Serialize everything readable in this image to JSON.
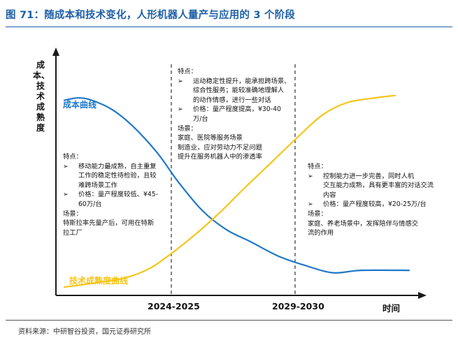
{
  "figure_title": "图 71：随成本和技术变化，人形机器人量产与应用的 3 个阶段",
  "source": "资料来源：中研智谷投资，国元证券研究所",
  "colors": {
    "cost": "#1f78c8",
    "tech": "#f5c518",
    "title": "#1f5fa8"
  },
  "annotations": {
    "stage1": {
      "lines": [
        {
          "type": "head",
          "text": "特点："
        },
        {
          "type": "bullet",
          "text": "移动能力最成熟，自主重复"
        },
        {
          "type": "cont",
          "text": "工作的稳定性待检验，且较"
        },
        {
          "type": "cont",
          "text": "难跨场景工作"
        },
        {
          "type": "bullet",
          "text": "价格：量产程度较低、¥45-"
        },
        {
          "type": "cont",
          "text": "60万/台"
        },
        {
          "type": "head",
          "text": "场景："
        },
        {
          "type": "head",
          "text": "特斯拉率先量产后，可用在特斯"
        },
        {
          "type": "head",
          "text": "拉工厂"
        }
      ]
    },
    "stage2": {
      "lines": [
        {
          "type": "head",
          "text": "特点："
        },
        {
          "type": "bullet",
          "text": "运动稳定性提升，能承担跨场景、"
        },
        {
          "type": "cont",
          "text": "综合性服务；能较准确地理解人"
        },
        {
          "type": "cont",
          "text": "的动作情感，进行一些对话"
        },
        {
          "type": "bullet",
          "text": "价格：量产程度提高，¥30-40"
        },
        {
          "type": "cont",
          "text": "万/台"
        },
        {
          "type": "head",
          "text": "场景："
        },
        {
          "type": "head",
          "text": "家庭、医院等服务场景"
        },
        {
          "type": "head",
          "text": "制造业，应对劳动力不足问题"
        },
        {
          "type": "head",
          "text": "提升在服务机器人中的渗透率"
        }
      ]
    },
    "stage3": {
      "lines": [
        {
          "type": "head",
          "text": "特点："
        },
        {
          "type": "bullet",
          "text": "控制能力进一步完善，同时人机"
        },
        {
          "type": "cont",
          "text": "交互能力成熟，具有更丰富的对话交流"
        },
        {
          "type": "cont",
          "text": "内容"
        },
        {
          "type": "bullet",
          "text": "价格：量产程度较高，¥20-25万/台"
        },
        {
          "type": "head",
          "text": "场景："
        },
        {
          "type": "head",
          "text": "家庭、养老场景中，发挥陪伴与情感交"
        },
        {
          "type": "head",
          "text": "流的作用"
        }
      ]
    }
  },
  "chart_data": {
    "type": "line",
    "ylabel": "成本、技术成熟度",
    "xlabel": "时间",
    "x_ticks": [
      "2024-2025",
      "2029-2030"
    ],
    "grid": false,
    "series": [
      {
        "name": "成本曲线",
        "color": "#1f78c8",
        "points": [
          [
            0,
            0.8
          ],
          [
            0.04,
            0.81
          ],
          [
            0.08,
            0.8
          ],
          [
            0.14,
            0.76
          ],
          [
            0.2,
            0.69
          ],
          [
            0.27,
            0.58
          ],
          [
            0.33,
            0.46
          ],
          [
            0.4,
            0.34
          ],
          [
            0.47,
            0.26
          ],
          [
            0.54,
            0.21
          ],
          [
            0.62,
            0.15
          ],
          [
            0.7,
            0.11
          ],
          [
            0.78,
            0.08
          ],
          [
            0.86,
            0.09
          ],
          [
            1.0,
            0.09
          ]
        ]
      },
      {
        "name": "技术成熟度曲线",
        "color": "#f5c518",
        "points": [
          [
            0,
            0.02
          ],
          [
            0.1,
            0.04
          ],
          [
            0.18,
            0.06
          ],
          [
            0.25,
            0.1
          ],
          [
            0.31,
            0.16
          ],
          [
            0.38,
            0.24
          ],
          [
            0.45,
            0.33
          ],
          [
            0.52,
            0.43
          ],
          [
            0.6,
            0.54
          ],
          [
            0.68,
            0.65
          ],
          [
            0.75,
            0.74
          ],
          [
            0.82,
            0.79
          ],
          [
            0.9,
            0.81
          ],
          [
            0.96,
            0.82
          ]
        ]
      }
    ]
  }
}
